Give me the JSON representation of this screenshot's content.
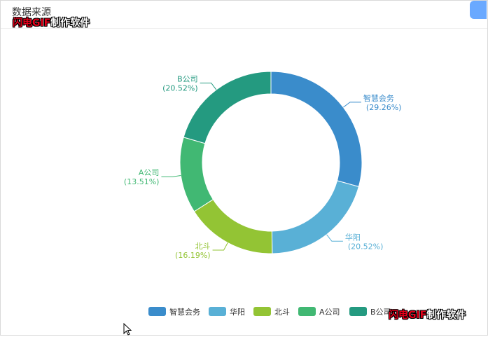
{
  "panel": {
    "title": "数据来源"
  },
  "watermark": {
    "part1": "闪电GIF",
    "part2": "制作软件"
  },
  "colors": {
    "accent_tab": "#6aa9ff"
  },
  "chart_data": {
    "type": "pie",
    "variant": "donut",
    "legend_position": "bottom-right",
    "slices": [
      {
        "name": "智慧会务",
        "percent": 29.26,
        "label": "(29.26%)",
        "color": "#3a8ccb"
      },
      {
        "name": "华阳",
        "percent": 20.52,
        "label": "(20.52%)",
        "color": "#59b0d6"
      },
      {
        "name": "北斗",
        "percent": 16.19,
        "label": "(16.19%)",
        "color": "#93c434"
      },
      {
        "name": "A公司",
        "percent": 13.51,
        "label": "(13.51%)",
        "color": "#41b873"
      },
      {
        "name": "B公司",
        "percent": 20.52,
        "label": "(20.52%)",
        "color": "#249a80"
      }
    ]
  }
}
